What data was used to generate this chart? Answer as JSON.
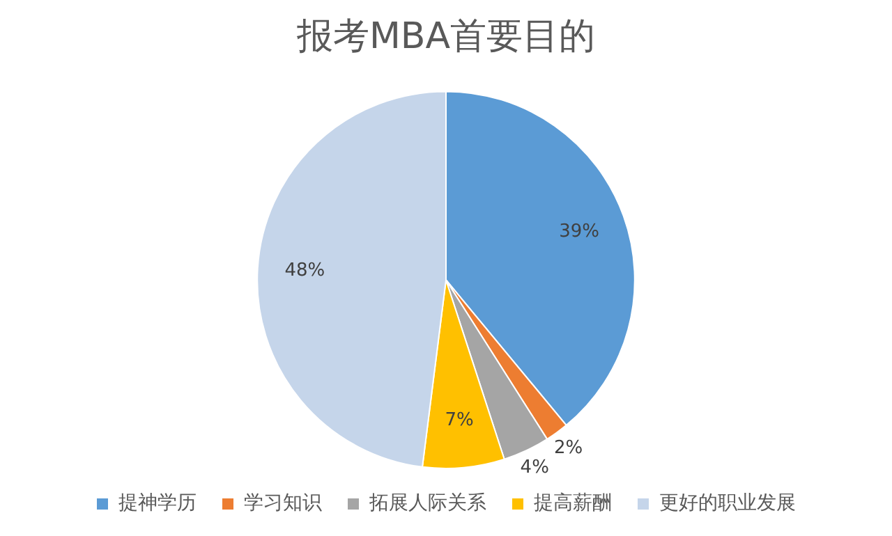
{
  "chart_data": {
    "type": "pie",
    "title": "报考MBA首要目的",
    "categories": [
      "提神学历",
      "学习知识",
      "拓展人际关系",
      "提高薪酬",
      "更好的职业发展"
    ],
    "values": [
      39,
      2,
      4,
      7,
      48
    ],
    "colors": [
      "#5b9bd5",
      "#ed7d31",
      "#a5a5a5",
      "#ffc000",
      "#c5d5ea"
    ],
    "value_labels": [
      "39%",
      "2%",
      "4%",
      "7%",
      "48%"
    ],
    "legend": "bottom"
  }
}
